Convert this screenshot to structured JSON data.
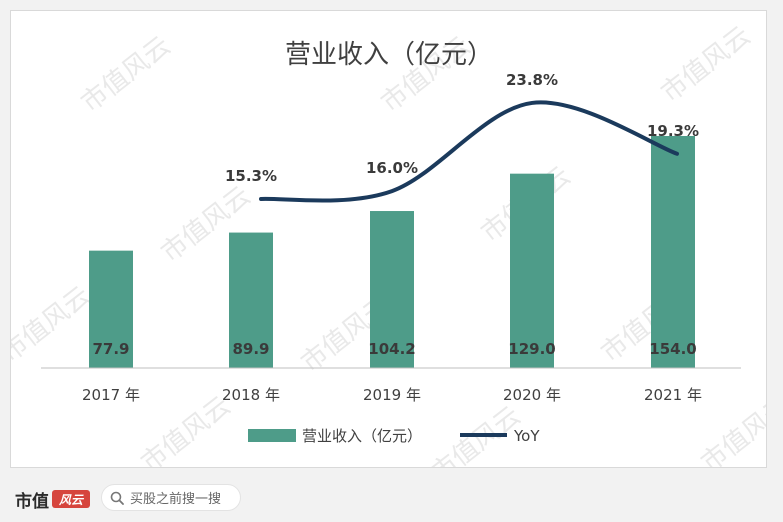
{
  "chart_data": {
    "type": "bar",
    "title": "营业收入（亿元）",
    "categories": [
      "2017 年",
      "2018 年",
      "2019 年",
      "2020 年",
      "2021 年"
    ],
    "series": [
      {
        "name": "营业收入（亿元）",
        "type": "bar",
        "color": "#4e9c89",
        "values": [
          77.9,
          89.9,
          104.2,
          129.0,
          154.0
        ],
        "labels": [
          "77.9",
          "89.9",
          "104.2",
          "129.0",
          "154.0"
        ]
      },
      {
        "name": "YoY",
        "type": "line",
        "color": "#1b3a5c",
        "values": [
          null,
          15.3,
          16.0,
          23.8,
          19.3
        ],
        "labels": [
          "",
          "15.3%",
          "16.0%",
          "23.8%",
          "19.3%"
        ]
      }
    ],
    "legend_position": "bottom",
    "grid": false
  },
  "footer": {
    "brand_name": "市值",
    "brand_logo_text": "风云",
    "search_placeholder": "买股之前搜一搜",
    "brand_color": "#d6453d"
  },
  "watermark_text": "市值风云"
}
